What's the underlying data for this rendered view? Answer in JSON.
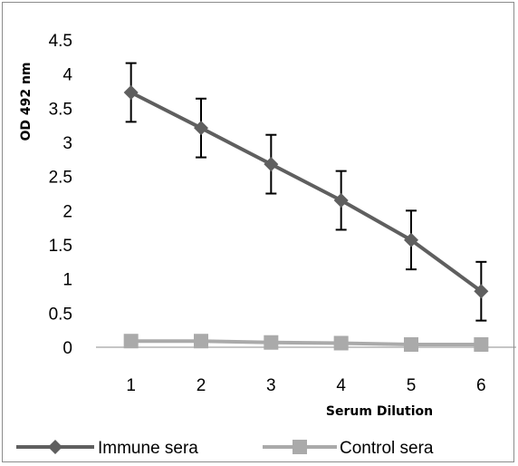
{
  "chart_data": {
    "type": "line",
    "title": "",
    "xlabel": "Serum Dilution",
    "ylabel": "OD 492 nm",
    "categories": [
      "1",
      "2",
      "3",
      "4",
      "5",
      "6"
    ],
    "ylim": [
      0,
      4.5
    ],
    "yticks": [
      "0",
      "0.5",
      "1",
      "1.5",
      "2",
      "2.5",
      "3",
      "3.5",
      "4",
      "4.5"
    ],
    "grid": false,
    "legend_position": "bottom",
    "series": [
      {
        "name": "Immune sera",
        "color": "#5f5f5f",
        "marker": "diamond",
        "values": [
          3.73,
          3.21,
          2.68,
          2.15,
          1.57,
          0.82
        ],
        "error": [
          0.43,
          0.43,
          0.43,
          0.43,
          0.43,
          0.43
        ]
      },
      {
        "name": "Control sera",
        "color": "#aaaaaa",
        "marker": "square",
        "values": [
          0.09,
          0.09,
          0.07,
          0.06,
          0.04,
          0.04
        ],
        "error": null
      }
    ]
  }
}
